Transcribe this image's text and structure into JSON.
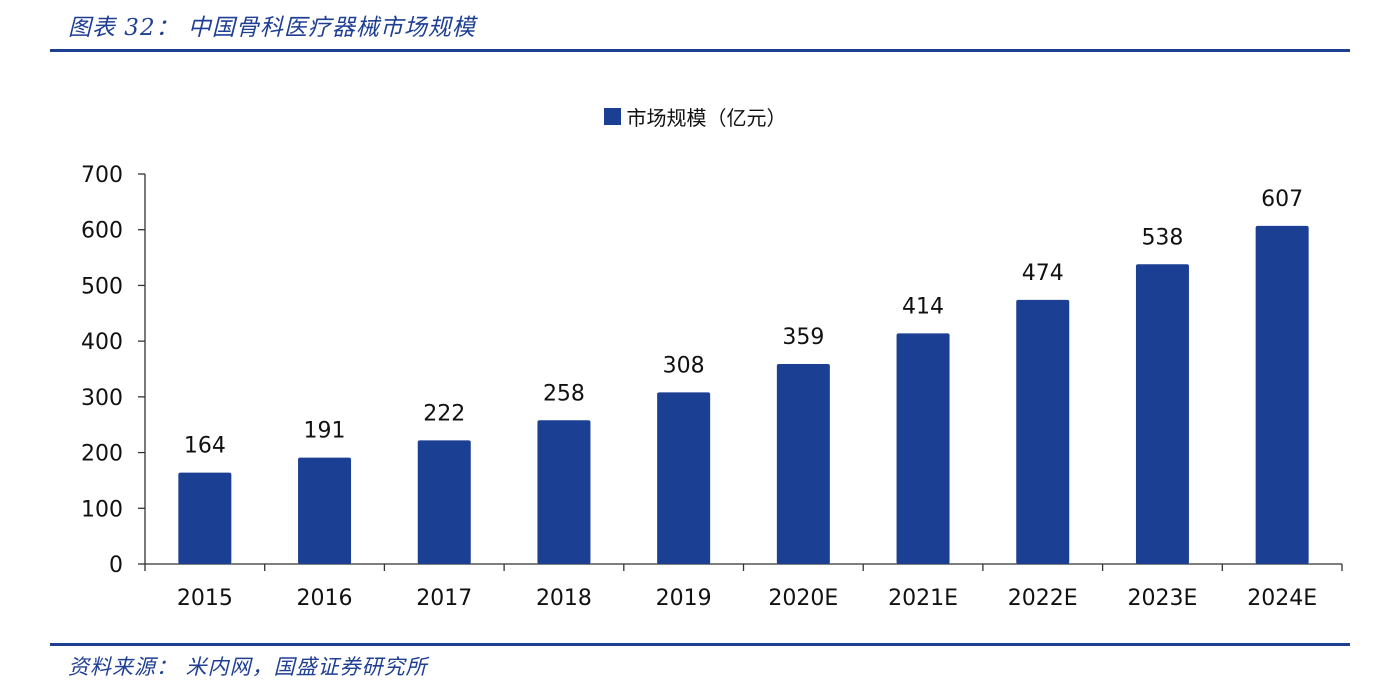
{
  "header": {
    "title": "图表 32：  中国骨科医疗器械市场规模"
  },
  "footer": {
    "source": "资料来源：  米内网，国盛证券研究所"
  },
  "colors": {
    "bar": "#1b3f92",
    "rule": "#1f3f93"
  },
  "chart_data": {
    "type": "bar",
    "title": "",
    "xlabel": "",
    "ylabel": "",
    "categories": [
      "2015",
      "2016",
      "2017",
      "2018",
      "2019",
      "2020E",
      "2021E",
      "2022E",
      "2023E",
      "2024E"
    ],
    "series": [
      {
        "name": "市场规模（亿元）",
        "values": [
          164,
          191,
          222,
          258,
          308,
          359,
          414,
          474,
          538,
          607
        ]
      }
    ],
    "ylim": [
      0,
      700
    ],
    "yticks": [
      0,
      100,
      200,
      300,
      400,
      500,
      600,
      700
    ],
    "grid": false,
    "legend": "top-center"
  }
}
